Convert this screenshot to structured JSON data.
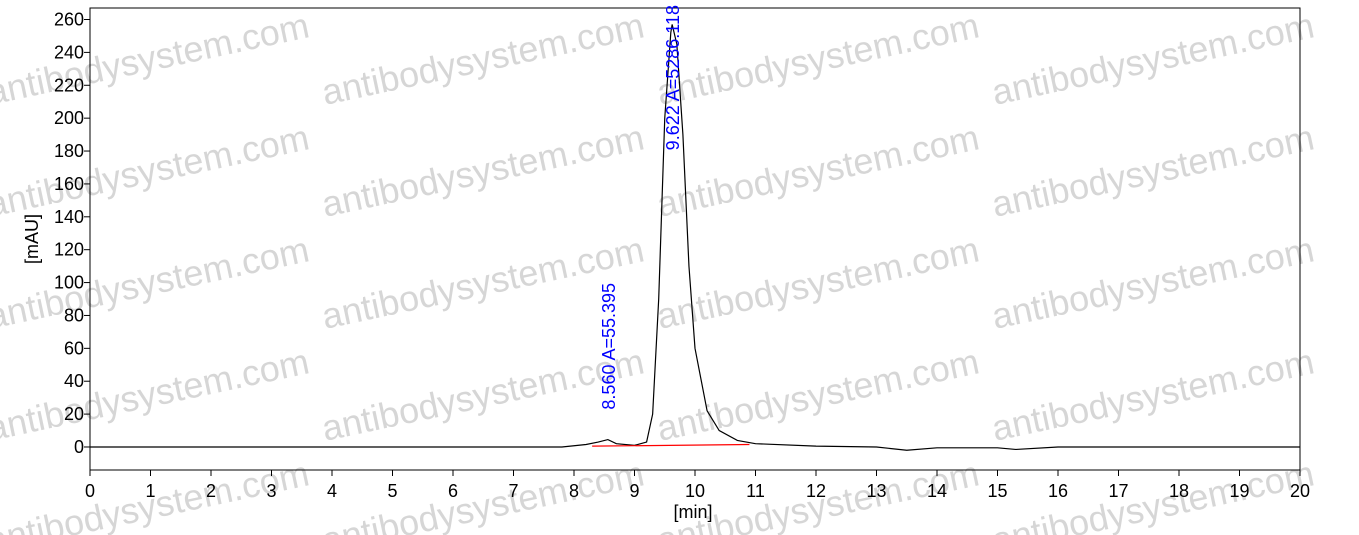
{
  "chart_data": {
    "type": "line",
    "x_label": "[min]",
    "y_label": "[mAU]",
    "watermark": "antibodysystem.com",
    "xlim": [
      0,
      20
    ],
    "xticks": [
      0,
      1,
      2,
      3,
      4,
      5,
      6,
      7,
      8,
      9,
      10,
      11,
      12,
      13,
      14,
      15,
      16,
      17,
      18,
      19,
      20
    ],
    "ylim": [
      -14,
      267
    ],
    "yticks": [
      0,
      20,
      40,
      60,
      80,
      100,
      120,
      140,
      160,
      180,
      200,
      220,
      240,
      260
    ],
    "series": [
      {
        "name": "signal",
        "color": "#000000",
        "x": [
          0,
          2.7,
          4.5,
          7.8,
          8.2,
          8.4,
          8.56,
          8.7,
          9.0,
          9.2,
          9.3,
          9.4,
          9.5,
          9.6,
          9.622,
          9.7,
          9.8,
          9.9,
          10.0,
          10.2,
          10.4,
          10.7,
          11,
          12,
          13,
          13.5,
          14,
          15,
          15.3,
          16,
          20
        ],
        "values": [
          0,
          0,
          0,
          0,
          1.5,
          3,
          4.5,
          2,
          1,
          3,
          20,
          90,
          200,
          252,
          257,
          245,
          190,
          110,
          60,
          22,
          10,
          4,
          2,
          0.5,
          0,
          -2,
          -0.5,
          -0.5,
          -1.5,
          0,
          0
        ]
      },
      {
        "name": "baseline",
        "color": "#ff0000",
        "x": [
          8.3,
          10.9
        ],
        "values": [
          0.5,
          1.5
        ]
      }
    ],
    "annotations": [
      {
        "text": "8.560 A=55.395",
        "x": 8.56,
        "color": "#0000ff"
      },
      {
        "text": "9.622 A=5286.118",
        "x": 9.622,
        "color": "#0000ff"
      }
    ]
  }
}
